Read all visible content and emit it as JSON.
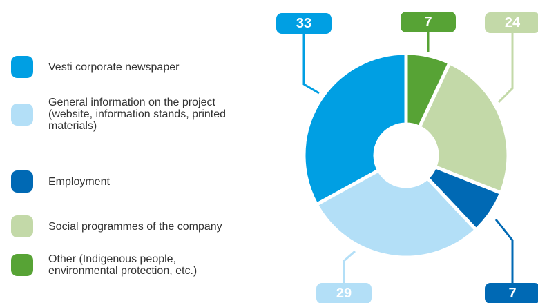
{
  "chart_data": {
    "type": "pie",
    "categories": [
      "Vesti corporate newspaper",
      "General information on the project (website, information stands, printed materials)",
      "Employment",
      "Social programmes of the company",
      "Other (Indigenous people, environmental protection, etc.)"
    ],
    "values": [
      33,
      29,
      7,
      24,
      7
    ],
    "colors": [
      "#009fe3",
      "#b3dff7",
      "#0069b4",
      "#c3d9a8",
      "#57a335"
    ],
    "donut": true
  }
}
